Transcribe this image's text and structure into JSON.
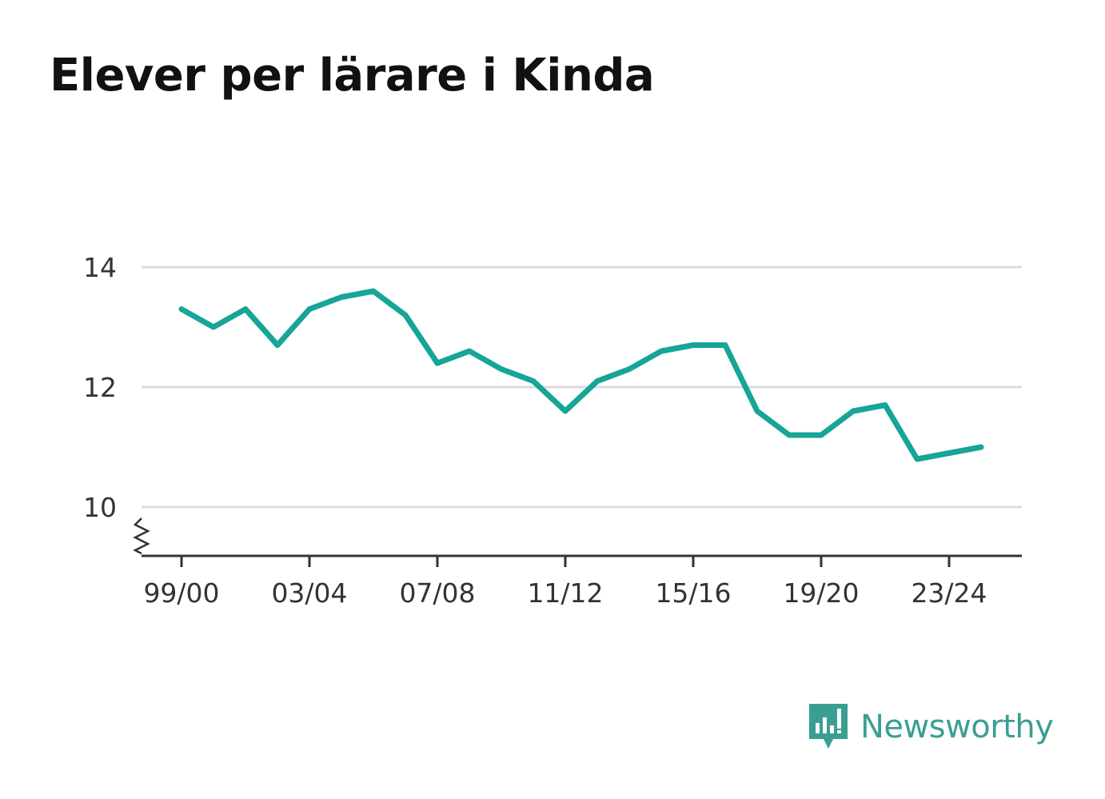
{
  "title": "Elever per lärare i Kinda",
  "brand": {
    "name": "Newsworthy",
    "icon": "bar-chart-speech-bubble-icon",
    "color": "#3a9e93"
  },
  "chart_data": {
    "type": "line",
    "title": "Elever per lärare i Kinda",
    "xlabel": "",
    "ylabel": "",
    "x": [
      "99/00",
      "00/01",
      "01/02",
      "02/03",
      "03/04",
      "04/05",
      "05/06",
      "06/07",
      "07/08",
      "08/09",
      "09/10",
      "10/11",
      "11/12",
      "12/13",
      "13/14",
      "14/15",
      "15/16",
      "16/17",
      "17/18",
      "18/19",
      "19/20",
      "20/21",
      "21/22",
      "22/23",
      "23/24",
      "24/25"
    ],
    "x_tick_labels": [
      "99/00",
      "03/04",
      "07/08",
      "11/12",
      "15/16",
      "19/20",
      "23/24"
    ],
    "series": [
      {
        "values": [
          13.3,
          13.0,
          13.3,
          12.7,
          13.3,
          13.5,
          13.6,
          13.2,
          12.4,
          12.6,
          12.3,
          12.1,
          11.6,
          12.1,
          12.3,
          12.6,
          12.7,
          12.7,
          11.6,
          11.2,
          11.2,
          11.6,
          11.7,
          10.8,
          10.9,
          11.0
        ],
        "color": "#16a596"
      }
    ],
    "y_ticks": [
      10,
      12,
      14
    ],
    "ylim": [
      9.2,
      14.2
    ],
    "y_axis_break": true,
    "grid": true,
    "legend": "none"
  }
}
